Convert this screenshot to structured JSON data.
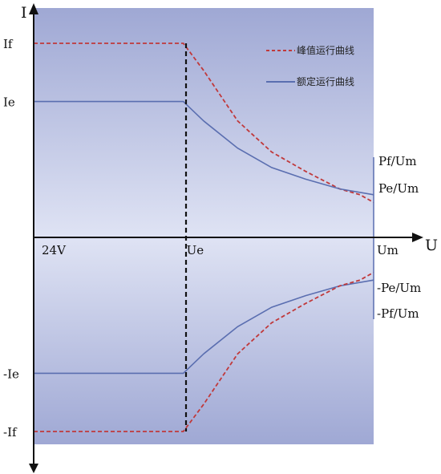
{
  "chart_data": {
    "type": "line",
    "title": "",
    "xlabel": "U",
    "ylabel": "I",
    "ylim": [
      -1.0,
      1.0
    ],
    "x_ticks": [
      {
        "label": "24V",
        "x": 0
      },
      {
        "label": "Ue",
        "x": 0.44
      },
      {
        "label": "Um",
        "x": 1.0
      }
    ],
    "y_ticks": [
      {
        "label": "If",
        "y": 1.0
      },
      {
        "label": "Ie",
        "y": 0.7
      },
      {
        "label": "-Ie",
        "y": -0.7
      },
      {
        "label": "-If",
        "y": -1.0
      }
    ],
    "series": [
      {
        "name": "峰值运行曲线",
        "color": "#c0393b",
        "dash": true,
        "x": [
          0,
          0.44,
          0.5,
          0.6,
          0.7,
          0.8,
          0.9,
          0.96,
          1.0
        ],
        "y": [
          1.0,
          1.0,
          0.86,
          0.6,
          0.44,
          0.34,
          0.25,
          0.22,
          0.18
        ]
      },
      {
        "name": "额定运行曲线",
        "color": "#5a6eb0",
        "dash": false,
        "x": [
          0,
          0.44,
          0.5,
          0.6,
          0.7,
          0.8,
          0.9,
          1.0
        ],
        "y": [
          0.7,
          0.7,
          0.6,
          0.46,
          0.36,
          0.3,
          0.25,
          0.22
        ]
      },
      {
        "name": "",
        "color": "#5a6eb0",
        "dash": false,
        "x": [
          0,
          0.44,
          0.5,
          0.6,
          0.7,
          0.8,
          0.9,
          1.0
        ],
        "y": [
          -0.7,
          -0.7,
          -0.6,
          -0.46,
          -0.36,
          -0.3,
          -0.25,
          -0.22
        ]
      },
      {
        "name": "",
        "color": "#c0393b",
        "dash": true,
        "x": [
          0,
          0.44,
          0.5,
          0.6,
          0.7,
          0.8,
          0.9,
          0.96,
          1.0
        ],
        "y": [
          -1.0,
          -1.0,
          -0.86,
          -0.6,
          -0.44,
          -0.34,
          -0.25,
          -0.22,
          -0.18
        ]
      }
    ],
    "annotations": [
      "Pf/Um",
      "Pe/Um",
      "-Pe/Um",
      "-Pf/Um"
    ],
    "legend_position": "top-right",
    "grid": false
  }
}
